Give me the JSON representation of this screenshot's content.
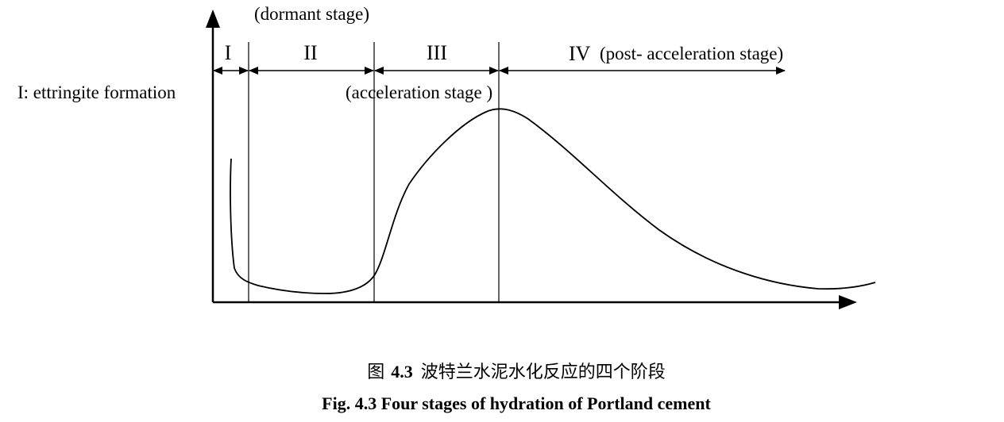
{
  "labels": {
    "dormant": "(dormant stage)",
    "acceleration": "(acceleration stage )",
    "stage_i_note": "I: ettringite formation"
  },
  "stages": [
    {
      "numeral": "I"
    },
    {
      "numeral": "II"
    },
    {
      "numeral": "III"
    },
    {
      "numeral": "IV",
      "name": "(post- acceleration stage)"
    }
  ],
  "caption": {
    "zh_prefix": "图",
    "zh_number": "4.3",
    "zh_text": "波特兰水泥水化反应的四个阶段",
    "en": "Fig. 4.3 Four stages of hydration of Portland cement"
  },
  "colors": {
    "ink": "#000000",
    "background": "#ffffff"
  }
}
